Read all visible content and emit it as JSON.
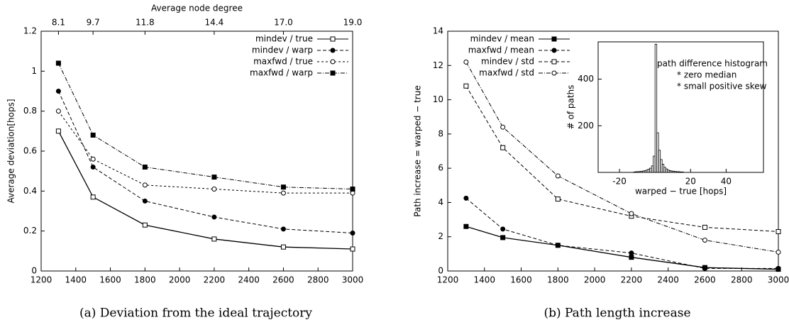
{
  "chart_data": [
    {
      "type": "line",
      "ylabel": "Average deviation[hops]",
      "caption": "(a) Deviation from the ideal trajectory",
      "top_axis": {
        "label": "Average node degree",
        "ticks": [
          "8.1",
          "9.7",
          "11.8",
          "14.4",
          "17.0",
          "19.0"
        ]
      },
      "x": [
        1300,
        1500,
        1800,
        2200,
        2600,
        3000
      ],
      "xlim": [
        1200,
        3000
      ],
      "xticks": [
        1200,
        1400,
        1600,
        1800,
        2000,
        2200,
        2400,
        2600,
        2800,
        3000
      ],
      "ylim": [
        0,
        1.2
      ],
      "yticks": [
        0,
        0.2,
        0.4,
        0.6,
        0.8,
        1,
        1.2
      ],
      "legend": "top-right",
      "series": [
        {
          "name": "mindev / true",
          "color": "#000000",
          "dash": "solid",
          "marker": "open-square",
          "values": [
            0.7,
            0.37,
            0.23,
            0.16,
            0.12,
            0.11
          ]
        },
        {
          "name": "mindev / warp",
          "color": "#000000",
          "dash": "dashed",
          "marker": "filled-circle",
          "values": [
            0.9,
            0.52,
            0.35,
            0.27,
            0.21,
            0.19
          ]
        },
        {
          "name": "maxfwd / true",
          "color": "#000000",
          "dash": "fine",
          "marker": "open-circle",
          "values": [
            0.8,
            0.56,
            0.43,
            0.41,
            0.39,
            0.39
          ]
        },
        {
          "name": "maxfwd / warp",
          "color": "#000000",
          "dash": "dashdot",
          "marker": "filled-square",
          "values": [
            1.04,
            0.68,
            0.52,
            0.47,
            0.42,
            0.41
          ]
        }
      ]
    },
    {
      "type": "line",
      "ylabel": "Path increase = warped − true",
      "caption": "(b) Path length increase",
      "x": [
        1300,
        1500,
        1800,
        2200,
        2600,
        3000
      ],
      "xlim": [
        1200,
        3000
      ],
      "xticks": [
        1200,
        1400,
        1600,
        1800,
        2000,
        2200,
        2400,
        2600,
        2800,
        3000
      ],
      "ylim": [
        0,
        14
      ],
      "yticks": [
        0,
        2,
        4,
        6,
        8,
        10,
        12,
        14
      ],
      "legend": "top-left",
      "series": [
        {
          "name": "mindev / mean",
          "color": "#000000",
          "dash": "solid",
          "marker": "filled-square",
          "values": [
            2.6,
            1.95,
            1.5,
            0.8,
            0.2,
            0.1
          ]
        },
        {
          "name": "maxfwd / mean",
          "color": "#000000",
          "dash": "dashed",
          "marker": "filled-circle",
          "values": [
            4.25,
            2.45,
            1.5,
            1.05,
            0.15,
            0.15
          ]
        },
        {
          "name": "mindev / std",
          "color": "#000000",
          "dash": "dashed",
          "marker": "open-square",
          "values": [
            10.8,
            7.2,
            4.2,
            3.2,
            2.55,
            2.3
          ]
        },
        {
          "name": "maxfwd / std",
          "color": "#000000",
          "dash": "dashdot",
          "marker": "open-circle",
          "values": [
            12.2,
            8.4,
            5.55,
            3.35,
            1.8,
            1.1
          ]
        }
      ],
      "inset": {
        "type": "histogram",
        "xlabel": "warped − true [hops]",
        "ylabel": "# of paths",
        "annotations": [
          "path difference histogram",
          "* zero median",
          "* small positive skew"
        ],
        "bins": [
          -12,
          -11,
          -10,
          -9,
          -8,
          -7,
          -6,
          -5,
          -4,
          -3,
          -2,
          -1,
          0,
          1,
          2,
          3,
          4,
          5,
          6,
          7,
          8,
          9,
          10,
          11,
          12,
          13,
          14,
          15,
          16
        ],
        "counts": [
          2,
          3,
          3,
          4,
          5,
          6,
          8,
          10,
          14,
          18,
          28,
          70,
          550,
          170,
          95,
          55,
          35,
          22,
          15,
          10,
          8,
          6,
          5,
          4,
          3,
          3,
          2,
          2
        ],
        "xlim": [
          -32,
          61
        ],
        "xticks": [
          -20,
          20,
          40
        ],
        "ylim": [
          0,
          560
        ],
        "yticks": [
          200,
          400
        ]
      }
    }
  ]
}
